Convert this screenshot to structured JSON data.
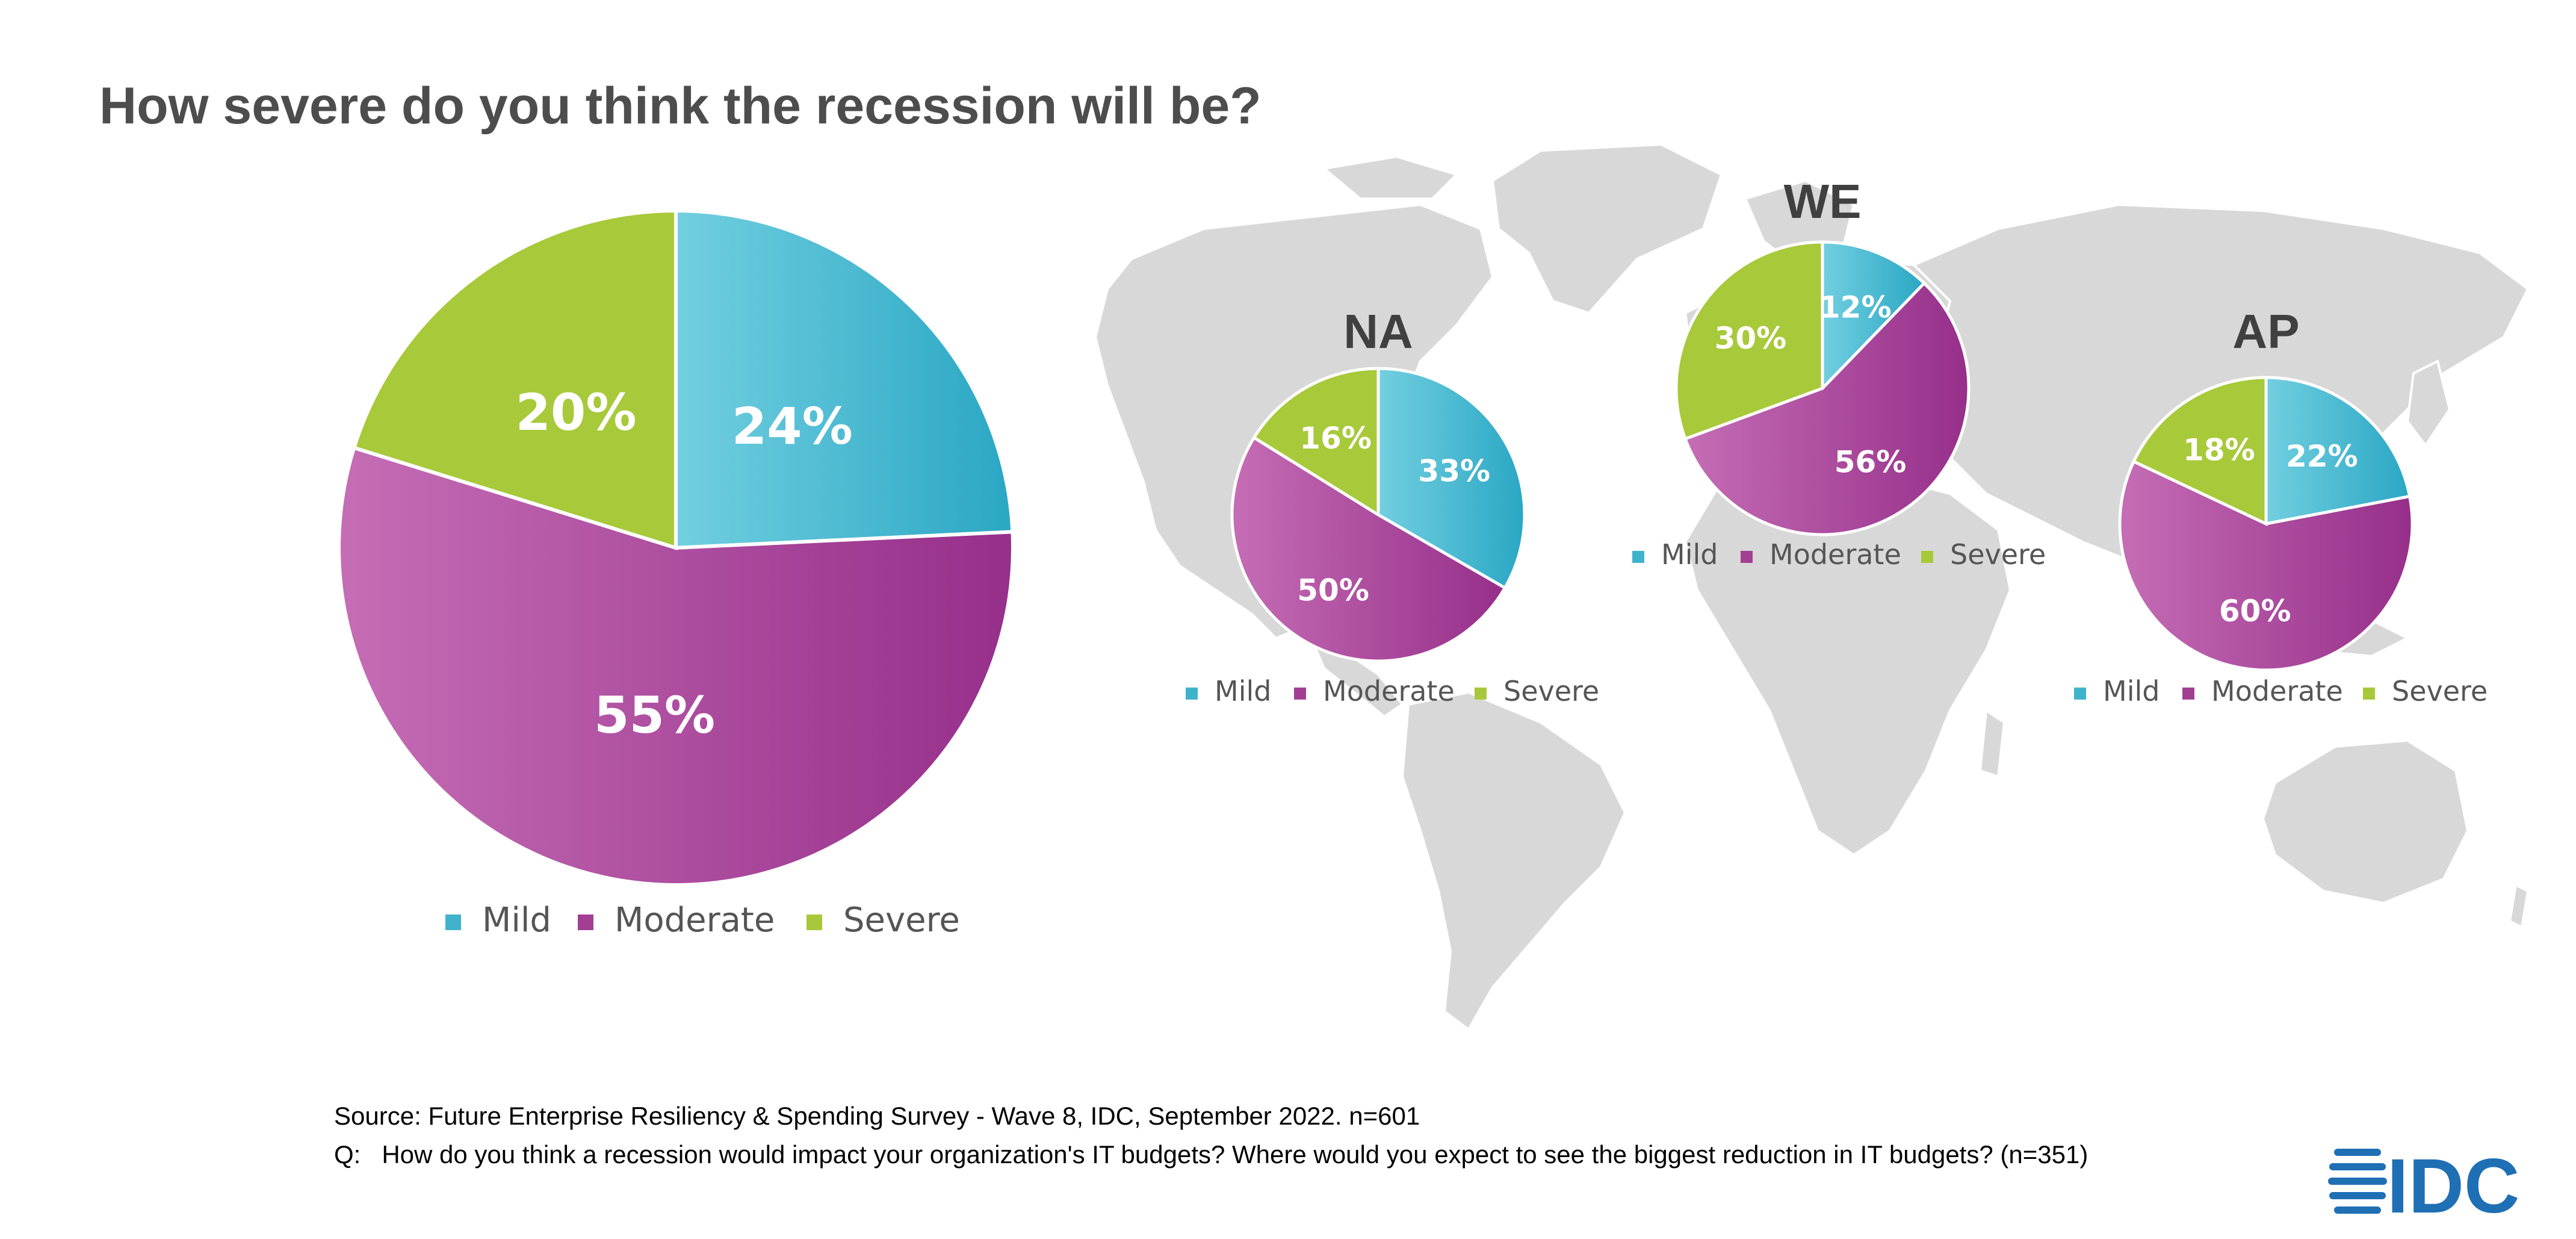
{
  "title": "How severe do you think the recession will be?",
  "colors": {
    "Mild": "#3fb3cc",
    "Moderate": "#a33f93",
    "Severe": "#a7c83a"
  },
  "legend": [
    "Mild",
    "Moderate",
    "Severe"
  ],
  "chart_data": [
    {
      "type": "pie",
      "title": "",
      "categories": [
        "Mild",
        "Moderate",
        "Severe"
      ],
      "values": [
        24,
        55,
        20
      ],
      "labels": [
        "24%",
        "55%",
        "20%"
      ]
    },
    {
      "type": "pie",
      "title": "NA",
      "categories": [
        "Mild",
        "Moderate",
        "Severe"
      ],
      "values": [
        33,
        50,
        16
      ],
      "labels": [
        "33%",
        "50%",
        "16%"
      ]
    },
    {
      "type": "pie",
      "title": "WE",
      "categories": [
        "Mild",
        "Moderate",
        "Severe"
      ],
      "values": [
        12,
        56,
        30
      ],
      "labels": [
        "12%",
        "56%",
        "30%"
      ]
    },
    {
      "type": "pie",
      "title": "AP",
      "categories": [
        "Mild",
        "Moderate",
        "Severe"
      ],
      "values": [
        22,
        60,
        18
      ],
      "labels": [
        "22%",
        "60%",
        "18%"
      ]
    }
  ],
  "footer": {
    "source": "Source: Future Enterprise Resiliency & Spending Survey - Wave 8, IDC, September 2022. n=601",
    "question": "Q:   How do you think a recession would impact your organization's IT budgets? Where would you expect to see the biggest reduction in IT budgets? (n=351)"
  },
  "logo": {
    "text": "IDC"
  }
}
